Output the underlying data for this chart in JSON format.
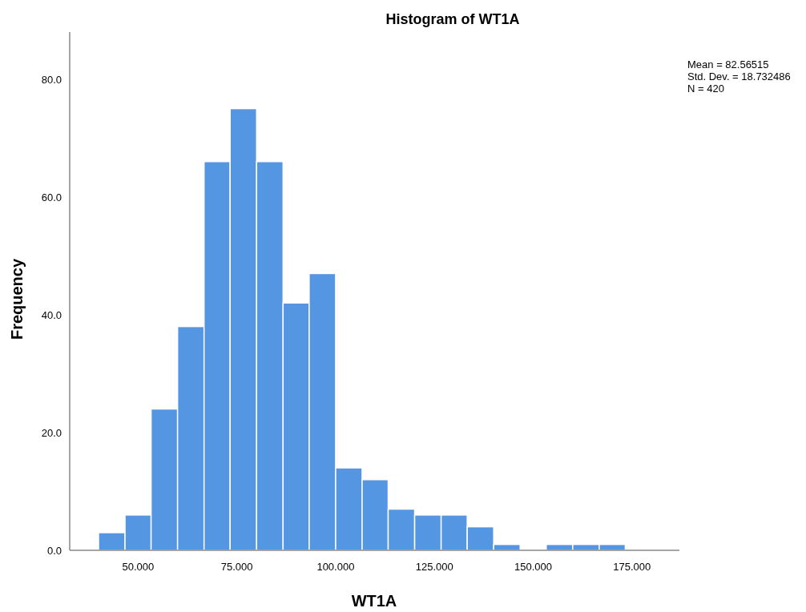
{
  "chart_data": {
    "type": "histogram",
    "title": "Histogram of WT1A",
    "xlabel": "WT1A",
    "ylabel": "Frequency",
    "bins": [
      40.0,
      46.7,
      53.3,
      60.0,
      66.7,
      73.3,
      80.0,
      86.7,
      93.3,
      100.0,
      106.7,
      113.3,
      120.0,
      126.7,
      133.3,
      140.0,
      146.7,
      153.3,
      160.0,
      166.7,
      173.3
    ],
    "values": [
      3,
      6,
      24,
      38,
      66,
      75,
      66,
      42,
      47,
      14,
      12,
      7,
      6,
      6,
      4,
      1,
      0,
      1,
      1,
      1
    ],
    "color": "#5596e3",
    "xlim": [
      32.7,
      187
    ],
    "ylim": [
      0,
      88
    ],
    "xticks": [
      {
        "value": 50,
        "label": "50.000"
      },
      {
        "value": 75,
        "label": "75.000"
      },
      {
        "value": 100,
        "label": "100.000"
      },
      {
        "value": 125,
        "label": "125.000"
      },
      {
        "value": 150,
        "label": "150.000"
      },
      {
        "value": 175,
        "label": "175.000"
      }
    ],
    "yticks": [
      {
        "value": 0,
        "label": "0.0"
      },
      {
        "value": 20,
        "label": "20.0"
      },
      {
        "value": 40,
        "label": "40.0"
      },
      {
        "value": 60,
        "label": "60.0"
      },
      {
        "value": 80,
        "label": "80.0"
      }
    ],
    "annotations": [
      "Mean = 82.56515",
      "Std. Dev. = 18.732486",
      "N = 420"
    ]
  }
}
